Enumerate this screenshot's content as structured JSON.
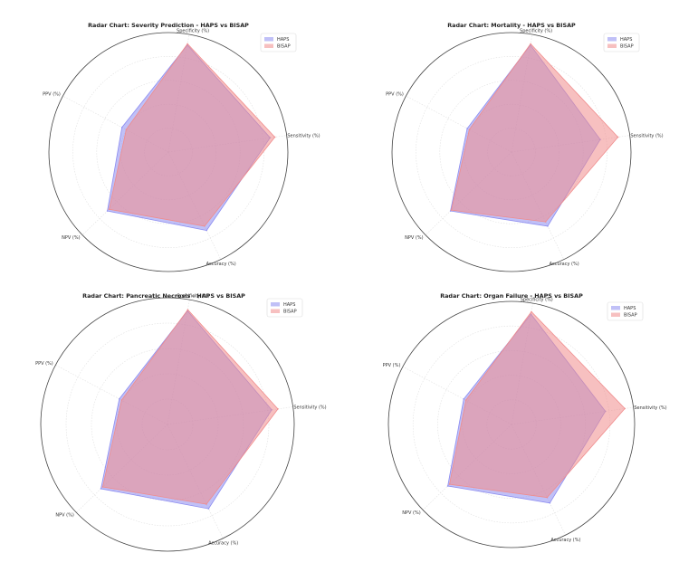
{
  "figure": {
    "background": "#ffffff"
  },
  "legend": {
    "haps_label": "HAPS",
    "bisap_label": "BISAP"
  },
  "colors": {
    "haps": "#8c8cf0",
    "bisap": "#f08c8c",
    "outer_ring": "#444444",
    "grid": "#e0e0e0"
  },
  "chart_data": [
    {
      "type": "radar",
      "title": "Radar Chart: Severity Prediction - HAPS vs BISAP",
      "axes": [
        "Specificity (%)",
        "Sensitivity (%)",
        "Accuracy (%)",
        "NPV (%)",
        "PPV (%)"
      ],
      "rmax": 100,
      "grid": true,
      "legend_position": "top-right",
      "series": [
        {
          "name": "HAPS",
          "values": [
            91,
            86,
            73,
            71,
            44
          ]
        },
        {
          "name": "BISAP",
          "values": [
            92,
            90,
            69,
            69,
            40
          ]
        }
      ]
    },
    {
      "type": "radar",
      "title": "Radar Chart: Mortality - HAPS vs BISAP",
      "axes": [
        "Specificity (%)",
        "Sensitivity (%)",
        "Accuracy (%)",
        "NPV (%)",
        "PPV (%)"
      ],
      "rmax": 100,
      "grid": true,
      "legend_position": "top-right",
      "series": [
        {
          "name": "HAPS",
          "values": [
            91,
            75,
            69,
            71,
            42
          ]
        },
        {
          "name": "BISAP",
          "values": [
            92,
            90,
            65,
            70,
            40
          ]
        }
      ]
    },
    {
      "type": "radar",
      "title": "Radar Chart: Pancreatic Necrosis - HAPS vs BISAP",
      "axes": [
        "Specificity (%)",
        "Sensitivity (%)",
        "Accuracy (%)",
        "NPV (%)",
        "PPV (%)"
      ],
      "rmax": 100,
      "grid": true,
      "legend_position": "top-right",
      "series": [
        {
          "name": "HAPS",
          "values": [
            91,
            83,
            74,
            73,
            43
          ]
        },
        {
          "name": "BISAP",
          "values": [
            92,
            88,
            70,
            71,
            41
          ]
        }
      ]
    },
    {
      "type": "radar",
      "title": "Radar Chart: Organ Failure - HAPS vs BISAP",
      "axes": [
        "Specificity (%)",
        "Sensitivity (%)",
        "Accuracy (%)",
        "NPV (%)",
        "PPV (%)"
      ],
      "rmax": 100,
      "grid": true,
      "legend_position": "top-right",
      "series": [
        {
          "name": "HAPS",
          "values": [
            91,
            77,
            71,
            72,
            44
          ]
        },
        {
          "name": "BISAP",
          "values": [
            93,
            93,
            66,
            70,
            42
          ]
        }
      ]
    }
  ]
}
